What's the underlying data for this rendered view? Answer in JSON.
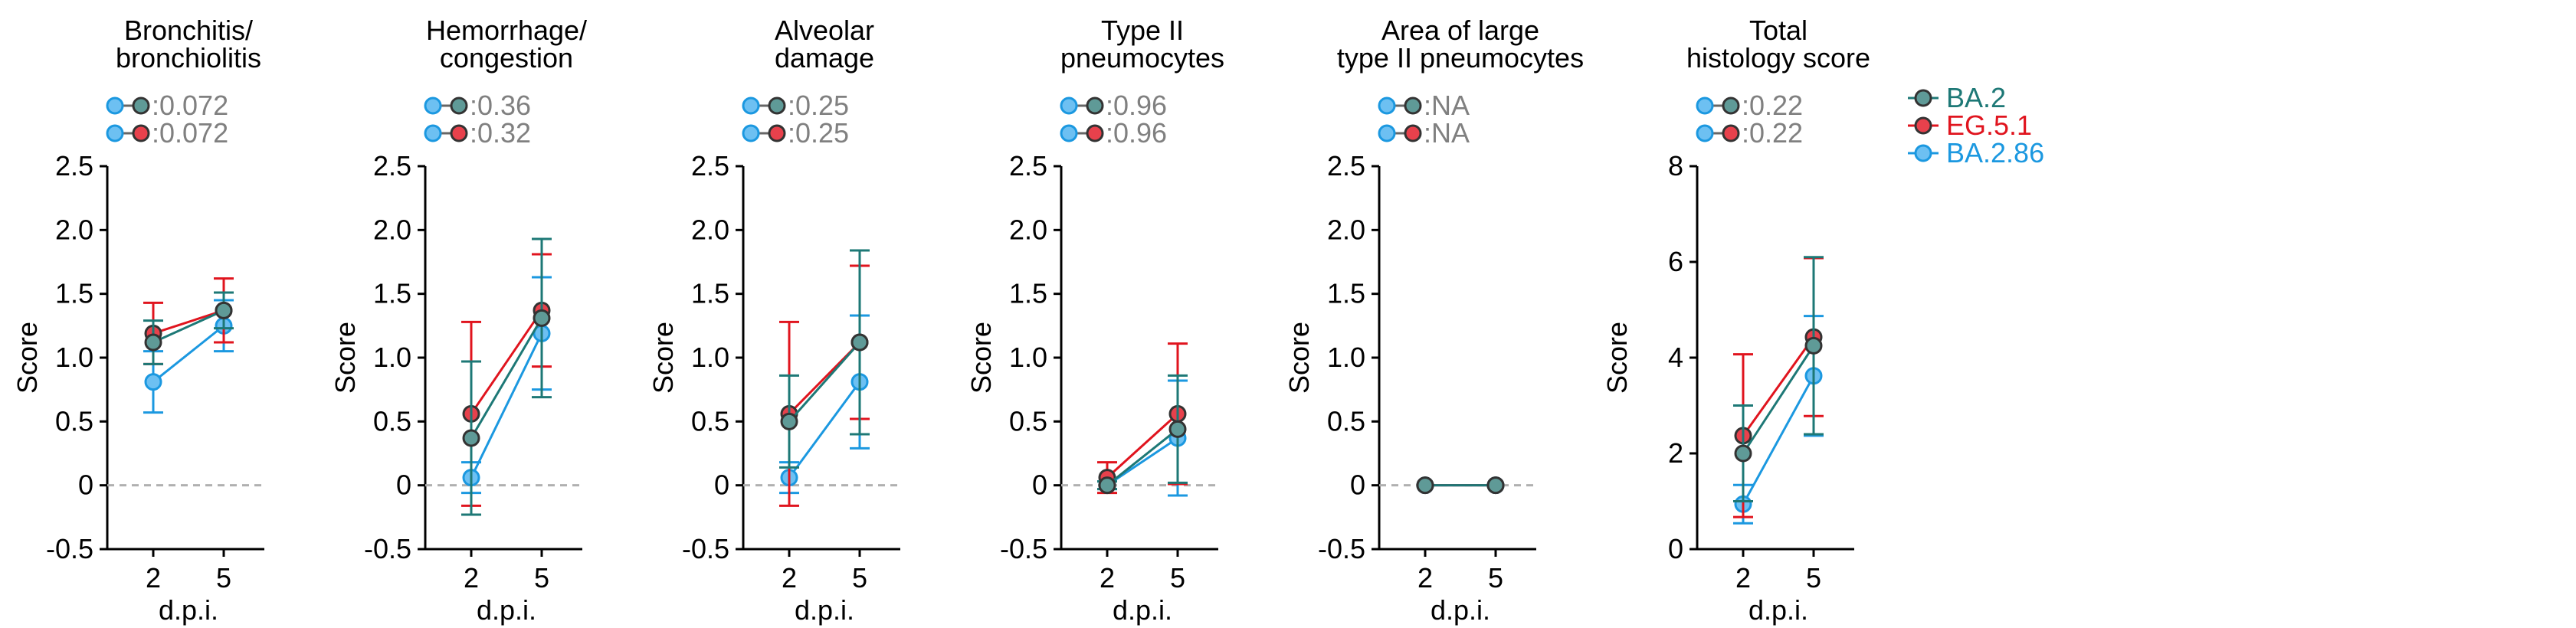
{
  "series": [
    {
      "name": "BA.2",
      "color": "#1d7876",
      "fill": "#5f9a97"
    },
    {
      "name": "EG.5.1",
      "color": "#e0141e",
      "fill": "#e8414c"
    },
    {
      "name": "BA.2.86",
      "color": "#1b98e0",
      "fill": "#6dc0f2"
    }
  ],
  "chart_data": [
    {
      "type": "line",
      "title": [
        "Bronchitis/",
        "bronchiolitis"
      ],
      "xlabel": "d.p.i.",
      "ylabel": "Score",
      "x": [
        "2",
        "5"
      ],
      "ylim": [
        -0.5,
        2.5
      ],
      "yticks": [
        -0.5,
        0,
        0.5,
        1.0,
        1.5,
        2.0,
        2.5
      ],
      "ytick_labels": [
        "-0.5",
        "0",
        "0.5",
        "1.0",
        "1.5",
        "2.0",
        "2.5"
      ],
      "pvalues": [
        ":0.072",
        ":0.072"
      ],
      "series": [
        {
          "name": "BA.2",
          "values": [
            1.12,
            1.37
          ],
          "err": [
            0.17,
            0.14
          ]
        },
        {
          "name": "EG.5.1",
          "values": [
            1.19,
            1.37
          ],
          "err": [
            0.24,
            0.25
          ]
        },
        {
          "name": "BA.2.86",
          "values": [
            0.81,
            1.25
          ],
          "err": [
            0.24,
            0.2
          ]
        }
      ]
    },
    {
      "type": "line",
      "title": [
        "Hemorrhage/",
        "congestion"
      ],
      "xlabel": "d.p.i.",
      "ylabel": "Score",
      "x": [
        "2",
        "5"
      ],
      "ylim": [
        -0.5,
        2.5
      ],
      "yticks": [
        -0.5,
        0,
        0.5,
        1.0,
        1.5,
        2.0,
        2.5
      ],
      "ytick_labels": [
        "-0.5",
        "0",
        "0.5",
        "1.0",
        "1.5",
        "2.0",
        "2.5"
      ],
      "pvalues": [
        ":0.36",
        ":0.32"
      ],
      "series": [
        {
          "name": "BA.2",
          "values": [
            0.37,
            1.31
          ],
          "err": [
            0.6,
            0.62
          ]
        },
        {
          "name": "EG.5.1",
          "values": [
            0.56,
            1.37
          ],
          "err": [
            0.72,
            0.44
          ]
        },
        {
          "name": "BA.2.86",
          "values": [
            0.06,
            1.19
          ],
          "err": [
            0.12,
            0.44
          ]
        }
      ]
    },
    {
      "type": "line",
      "title": [
        "Alveolar",
        "damage"
      ],
      "xlabel": "d.p.i.",
      "ylabel": "Score",
      "x": [
        "2",
        "5"
      ],
      "ylim": [
        -0.5,
        2.5
      ],
      "yticks": [
        -0.5,
        0,
        0.5,
        1.0,
        1.5,
        2.0,
        2.5
      ],
      "ytick_labels": [
        "-0.5",
        "0",
        "0.5",
        "1.0",
        "1.5",
        "2.0",
        "2.5"
      ],
      "pvalues": [
        ":0.25",
        ":0.25"
      ],
      "series": [
        {
          "name": "BA.2",
          "values": [
            0.5,
            1.12
          ],
          "err": [
            0.36,
            0.72
          ]
        },
        {
          "name": "EG.5.1",
          "values": [
            0.56,
            1.12
          ],
          "err": [
            0.72,
            0.6
          ]
        },
        {
          "name": "BA.2.86",
          "values": [
            0.06,
            0.81
          ],
          "err": [
            0.12,
            0.52
          ]
        }
      ]
    },
    {
      "type": "line",
      "title": [
        "Type II",
        "pneumocytes"
      ],
      "xlabel": "d.p.i.",
      "ylabel": "Score",
      "x": [
        "2",
        "5"
      ],
      "ylim": [
        -0.5,
        2.5
      ],
      "yticks": [
        -0.5,
        0,
        0.5,
        1.0,
        1.5,
        2.0,
        2.5
      ],
      "ytick_labels": [
        "-0.5",
        "0",
        "0.5",
        "1.0",
        "1.5",
        "2.0",
        "2.5"
      ],
      "pvalues": [
        ":0.96",
        ":0.96"
      ],
      "series": [
        {
          "name": "BA.2",
          "values": [
            0.0,
            0.44
          ],
          "err": [
            0.03,
            0.42
          ]
        },
        {
          "name": "EG.5.1",
          "values": [
            0.06,
            0.56
          ],
          "err": [
            0.12,
            0.55
          ]
        },
        {
          "name": "BA.2.86",
          "values": [
            0.0,
            0.37
          ],
          "err": [
            0.03,
            0.45
          ]
        }
      ]
    },
    {
      "type": "line",
      "title": [
        "Area of large",
        "type II pneumocytes"
      ],
      "xlabel": "d.p.i.",
      "ylabel": "Score",
      "x": [
        "2",
        "5"
      ],
      "ylim": [
        -0.5,
        2.5
      ],
      "yticks": [
        -0.5,
        0,
        0.5,
        1.0,
        1.5,
        2.0,
        2.5
      ],
      "ytick_labels": [
        "-0.5",
        "0",
        "0.5",
        "1.0",
        "1.5",
        "2.0",
        "2.5"
      ],
      "pvalues": [
        ":NA",
        ":NA"
      ],
      "series": [
        {
          "name": "BA.2",
          "values": [
            0.0,
            0.0
          ],
          "err": [
            0,
            0
          ]
        },
        {
          "name": "EG.5.1",
          "values": [
            0.0,
            0.0
          ],
          "err": [
            0,
            0
          ]
        },
        {
          "name": "BA.2.86",
          "values": [
            0.0,
            0.0
          ],
          "err": [
            0,
            0
          ]
        }
      ]
    },
    {
      "type": "line",
      "title": [
        "Total",
        "histology score"
      ],
      "xlabel": "d.p.i.",
      "ylabel": "Score",
      "x": [
        "2",
        "5"
      ],
      "ylim": [
        0,
        8
      ],
      "yticks": [
        0,
        2,
        4,
        6,
        8
      ],
      "ytick_labels": [
        "0",
        "2",
        "4",
        "6",
        "8"
      ],
      "pvalues": [
        ":0.22",
        ":0.22"
      ],
      "series": [
        {
          "name": "BA.2",
          "values": [
            2.0,
            4.25
          ],
          "err": [
            1.0,
            1.85
          ]
        },
        {
          "name": "EG.5.1",
          "values": [
            2.37,
            4.43
          ],
          "err": [
            1.7,
            1.65
          ]
        },
        {
          "name": "BA.2.86",
          "values": [
            0.94,
            3.62
          ],
          "err": [
            0.4,
            1.25
          ]
        }
      ]
    }
  ]
}
